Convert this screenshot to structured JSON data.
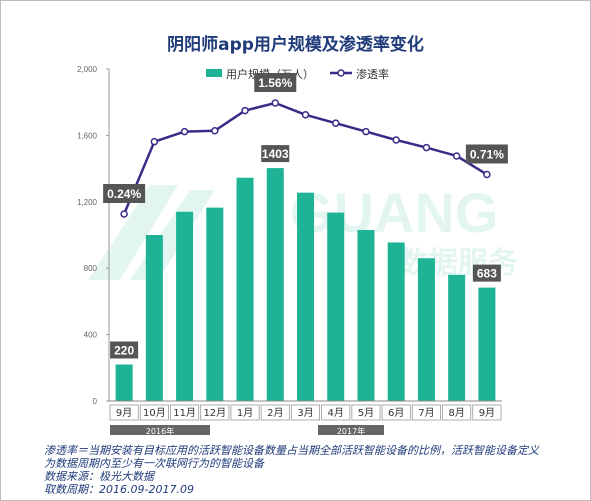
{
  "header": {
    "title": "阴阳师app用户规模及渗透率变化"
  },
  "watermark": {
    "brand": "GUANG",
    "sub": "数据服务"
  },
  "legend": {
    "bar_label": "用户规模（万人）",
    "line_label": "渗透率"
  },
  "years": [
    {
      "label": "2016年"
    },
    {
      "label": "2017年"
    }
  ],
  "notes": {
    "line1": "渗透率＝当期安装有目标应用的活跃智能设备数量占当期全部活跃智能设备的比例，活跃智能设备定义",
    "line2": "为数据周期内至少有一次联网行为的智能设备",
    "line3": "数据来源：极光大数据",
    "line4": "取数周期：2016.09-2017.09"
  },
  "colors": {
    "bar": "#1db394",
    "line": "#3b2a87",
    "callout": "#555555",
    "title": "#1f3b7a"
  },
  "chart_data": {
    "type": "bar",
    "title": "阴阳师app用户规模及渗透率变化",
    "categories": [
      "9月",
      "10月",
      "11月",
      "12月",
      "1月",
      "2月",
      "3月",
      "4月",
      "5月",
      "6月",
      "7月",
      "8月",
      "9月"
    ],
    "series": [
      {
        "name": "用户规模（万人）",
        "type": "bar",
        "values": [
          220,
          1000,
          1140,
          1165,
          1345,
          1403,
          1255,
          1135,
          1030,
          955,
          860,
          760,
          683
        ]
      },
      {
        "name": "渗透率",
        "type": "line",
        "values": [
          0.24,
          1.1,
          1.22,
          1.23,
          1.47,
          1.56,
          1.42,
          1.32,
          1.22,
          1.12,
          1.03,
          0.93,
          0.71
        ]
      }
    ],
    "yticks": [
      "0",
      "400",
      "800",
      "1,200",
      "1,600",
      "2,000"
    ],
    "ylim": [
      0,
      2000
    ],
    "grid": false,
    "legend": "top-right",
    "bar_callouts": [
      {
        "index": 0,
        "text": "220"
      },
      {
        "index": 5,
        "text": "1403"
      },
      {
        "index": 12,
        "text": "683"
      }
    ],
    "line_callouts": [
      {
        "index": 0,
        "text": "0.24%"
      },
      {
        "index": 5,
        "text": "1.56%"
      },
      {
        "index": 12,
        "text": "0.71%"
      }
    ]
  }
}
